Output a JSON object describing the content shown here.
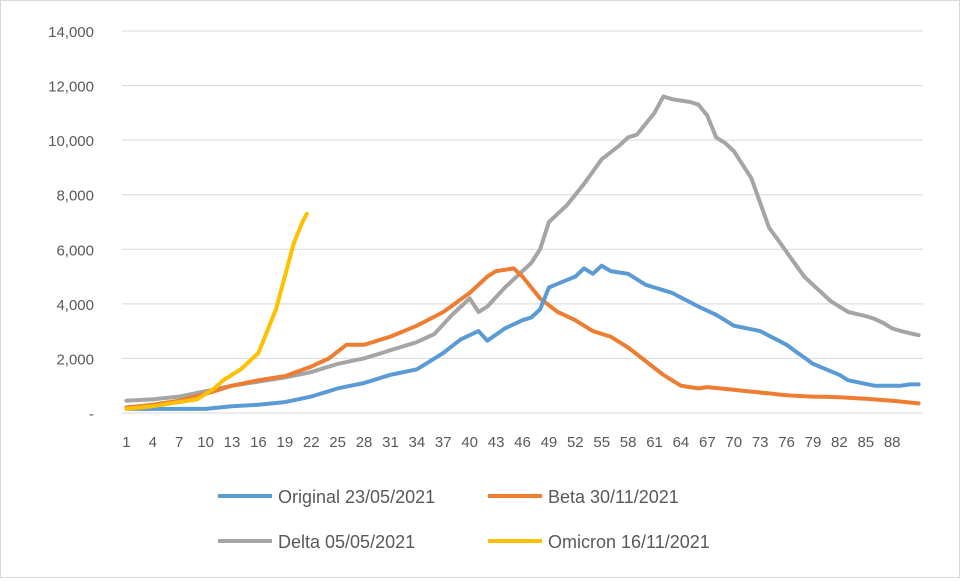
{
  "chart_data": {
    "type": "line",
    "title": "",
    "xlabel": "",
    "ylabel": "",
    "ylim": [
      0,
      14000
    ],
    "yticks": [
      0,
      2000,
      4000,
      6000,
      8000,
      10000,
      12000,
      14000
    ],
    "ytick_labels": [
      "-",
      "2,000",
      "4,000",
      "6,000",
      "8,000",
      "10,000",
      "12,000",
      "14,000"
    ],
    "x_count": 91,
    "xtick_labels": [
      "1",
      "4",
      "7",
      "10",
      "13",
      "16",
      "19",
      "22",
      "25",
      "28",
      "31",
      "34",
      "37",
      "40",
      "43",
      "46",
      "49",
      "52",
      "55",
      "58",
      "61",
      "64",
      "67",
      "70",
      "73",
      "76",
      "79",
      "82",
      "85",
      "88"
    ],
    "grid": true,
    "legend_position": "bottom",
    "series": [
      {
        "name": "Original 23/05/2021",
        "color": "#5b9bd5",
        "keypoints": [
          [
            1,
            150
          ],
          [
            7,
            150
          ],
          [
            10,
            150
          ],
          [
            13,
            250
          ],
          [
            16,
            300
          ],
          [
            19,
            400
          ],
          [
            22,
            600
          ],
          [
            25,
            900
          ],
          [
            28,
            1100
          ],
          [
            31,
            1400
          ],
          [
            34,
            1600
          ],
          [
            37,
            2200
          ],
          [
            39,
            2700
          ],
          [
            41,
            3000
          ],
          [
            42,
            2650
          ],
          [
            44,
            3100
          ],
          [
            46,
            3400
          ],
          [
            47,
            3500
          ],
          [
            48,
            3800
          ],
          [
            49,
            4600
          ],
          [
            52,
            5000
          ],
          [
            53,
            5300
          ],
          [
            54,
            5100
          ],
          [
            55,
            5400
          ],
          [
            56,
            5200
          ],
          [
            58,
            5100
          ],
          [
            60,
            4700
          ],
          [
            63,
            4400
          ],
          [
            66,
            3900
          ],
          [
            68,
            3600
          ],
          [
            70,
            3200
          ],
          [
            73,
            3000
          ],
          [
            76,
            2500
          ],
          [
            79,
            1800
          ],
          [
            82,
            1400
          ],
          [
            83,
            1200
          ],
          [
            86,
            1000
          ],
          [
            89,
            1000
          ],
          [
            90,
            1050
          ],
          [
            91,
            1050
          ]
        ]
      },
      {
        "name": "Beta 30/11/2021",
        "color": "#ed7d31",
        "keypoints": [
          [
            1,
            200
          ],
          [
            4,
            300
          ],
          [
            7,
            450
          ],
          [
            10,
            700
          ],
          [
            13,
            1000
          ],
          [
            16,
            1200
          ],
          [
            19,
            1350
          ],
          [
            22,
            1700
          ],
          [
            24,
            2000
          ],
          [
            26,
            2500
          ],
          [
            28,
            2500
          ],
          [
            31,
            2800
          ],
          [
            34,
            3200
          ],
          [
            37,
            3700
          ],
          [
            40,
            4400
          ],
          [
            42,
            5000
          ],
          [
            43,
            5200
          ],
          [
            45,
            5300
          ],
          [
            46,
            5000
          ],
          [
            48,
            4200
          ],
          [
            50,
            3700
          ],
          [
            52,
            3400
          ],
          [
            54,
            3000
          ],
          [
            56,
            2800
          ],
          [
            58,
            2400
          ],
          [
            60,
            1900
          ],
          [
            62,
            1400
          ],
          [
            64,
            1000
          ],
          [
            66,
            900
          ],
          [
            67,
            950
          ],
          [
            70,
            850
          ],
          [
            73,
            750
          ],
          [
            76,
            650
          ],
          [
            79,
            600
          ],
          [
            82,
            580
          ],
          [
            85,
            520
          ],
          [
            88,
            450
          ],
          [
            91,
            350
          ]
        ]
      },
      {
        "name": "Delta 05/05/2021",
        "color": "#a5a5a5",
        "keypoints": [
          [
            1,
            450
          ],
          [
            4,
            500
          ],
          [
            7,
            600
          ],
          [
            10,
            800
          ],
          [
            13,
            1000
          ],
          [
            16,
            1150
          ],
          [
            19,
            1300
          ],
          [
            22,
            1500
          ],
          [
            25,
            1800
          ],
          [
            28,
            2000
          ],
          [
            31,
            2300
          ],
          [
            34,
            2600
          ],
          [
            36,
            2900
          ],
          [
            38,
            3600
          ],
          [
            40,
            4200
          ],
          [
            41,
            3700
          ],
          [
            42,
            3900
          ],
          [
            44,
            4600
          ],
          [
            46,
            5200
          ],
          [
            47,
            5500
          ],
          [
            48,
            6000
          ],
          [
            49,
            7000
          ],
          [
            51,
            7600
          ],
          [
            52,
            8000
          ],
          [
            53,
            8400
          ],
          [
            55,
            9300
          ],
          [
            57,
            9800
          ],
          [
            58,
            10100
          ],
          [
            59,
            10200
          ],
          [
            61,
            11000
          ],
          [
            62,
            11600
          ],
          [
            63,
            11500
          ],
          [
            65,
            11400
          ],
          [
            66,
            11300
          ],
          [
            67,
            10900
          ],
          [
            68,
            10100
          ],
          [
            69,
            9900
          ],
          [
            70,
            9600
          ],
          [
            71,
            9100
          ],
          [
            72,
            8600
          ],
          [
            73,
            7700
          ],
          [
            74,
            6800
          ],
          [
            76,
            5900
          ],
          [
            78,
            5000
          ],
          [
            79,
            4700
          ],
          [
            80,
            4400
          ],
          [
            81,
            4100
          ],
          [
            82,
            3900
          ],
          [
            83,
            3700
          ],
          [
            85,
            3550
          ],
          [
            86,
            3450
          ],
          [
            87,
            3300
          ],
          [
            88,
            3100
          ],
          [
            89,
            3000
          ],
          [
            91,
            2850
          ]
        ]
      },
      {
        "name": "Omicron 16/11/2021",
        "color": "#ffc000",
        "keypoints": [
          [
            1,
            150
          ],
          [
            4,
            250
          ],
          [
            7,
            400
          ],
          [
            9,
            500
          ],
          [
            10,
            700
          ],
          [
            11,
            900
          ],
          [
            12,
            1200
          ],
          [
            13,
            1400
          ],
          [
            14,
            1600
          ],
          [
            15,
            1900
          ],
          [
            16,
            2200
          ],
          [
            17,
            3000
          ],
          [
            18,
            3800
          ],
          [
            19,
            5000
          ],
          [
            20,
            6200
          ],
          [
            21,
            7000
          ],
          [
            21.5,
            7300
          ]
        ]
      }
    ]
  }
}
